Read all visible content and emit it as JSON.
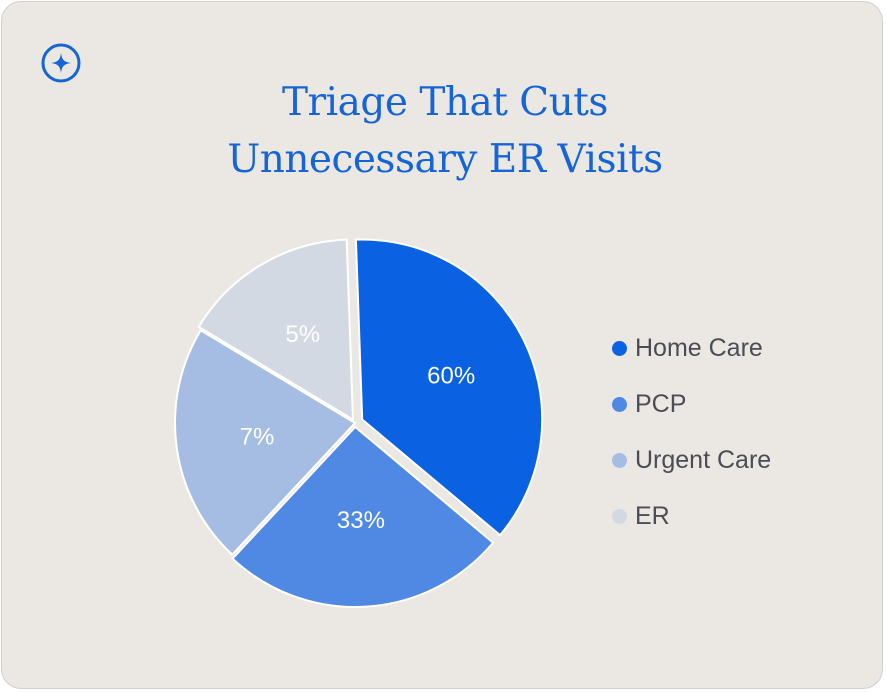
{
  "title": {
    "line1": "Triage That Cuts",
    "line2": "Unnecessary ER Visits"
  },
  "icons": {
    "brand": "sparkle-circle-icon"
  },
  "colors": {
    "background": "#ebe8e4",
    "title": "#1565d8",
    "legend_text": "#4a4d55",
    "slice_label": "#ffffff"
  },
  "chart_data": {
    "type": "pie",
    "title": "Triage That Cuts Unnecessary ER Visits",
    "legend_position": "right",
    "slices": [
      {
        "label": "Home Care",
        "value": 60,
        "display": "60%",
        "color": "#0a62e2"
      },
      {
        "label": "PCP",
        "value": 33,
        "display": "33%",
        "color": "#4f89e3"
      },
      {
        "label": "Urgent Care",
        "value": 7,
        "display": "7%",
        "color": "#a5bde3"
      },
      {
        "label": "ER",
        "value": 5,
        "display": "5%",
        "color": "#d3d9e2"
      }
    ]
  }
}
